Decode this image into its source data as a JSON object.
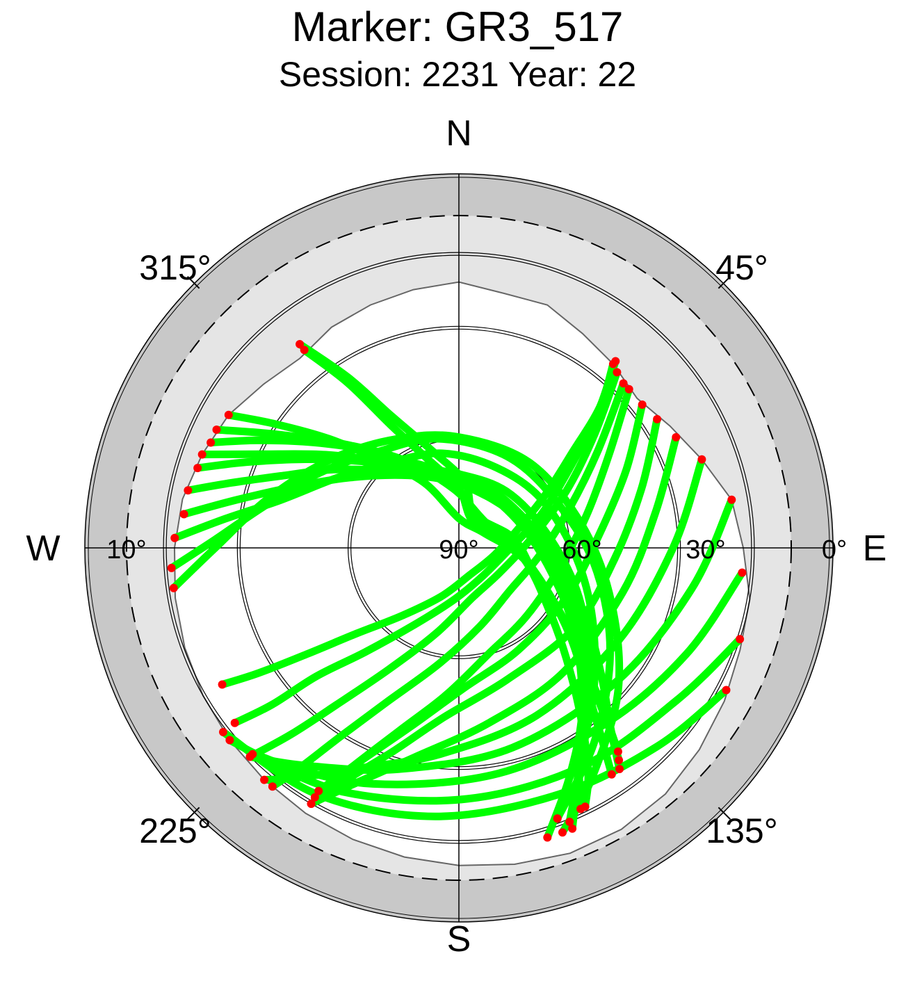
{
  "chart_data": {
    "type": "scatter",
    "projection": "polar-skyplot",
    "title": "Marker: GR3_517",
    "subtitle": "Session: 2231 Year: 22",
    "cardinal_labels": {
      "north": "N",
      "south": "S",
      "west": "W",
      "east": "E"
    },
    "azimuth_labels": [
      "315°",
      "45°",
      "225°",
      "135°"
    ],
    "elevation_labels": [
      "10°",
      "90°",
      "60°",
      "30°",
      "0°"
    ],
    "elevation_circles_deg": [
      0,
      10,
      30,
      60
    ],
    "colors": {
      "outer_band": "#c8c8c8",
      "visible_band": "#e5e5e5",
      "horizon_mask_fill": "#ffffff",
      "track": "#00ff00",
      "track_end": "#ff0000"
    },
    "horizon_mask_el_deg": [
      [
        0,
        18
      ],
      [
        10,
        20
      ],
      [
        20,
        20
      ],
      [
        30,
        23
      ],
      [
        40,
        25
      ],
      [
        50,
        27
      ],
      [
        60,
        24
      ],
      [
        70,
        20
      ],
      [
        80,
        15
      ],
      [
        90,
        13
      ],
      [
        100,
        10
      ],
      [
        110,
        9
      ],
      [
        120,
        7
      ],
      [
        130,
        5
      ],
      [
        140,
        3
      ],
      [
        150,
        2
      ],
      [
        160,
        2
      ],
      [
        170,
        3
      ],
      [
        180,
        4
      ],
      [
        190,
        5
      ],
      [
        200,
        6
      ],
      [
        210,
        7
      ],
      [
        220,
        8
      ],
      [
        230,
        9
      ],
      [
        240,
        10
      ],
      [
        250,
        11
      ],
      [
        260,
        12
      ],
      [
        270,
        13
      ],
      [
        280,
        14
      ],
      [
        290,
        16
      ],
      [
        300,
        18
      ],
      [
        310,
        21
      ],
      [
        320,
        23
      ],
      [
        330,
        21
      ],
      [
        340,
        20
      ],
      [
        350,
        19
      ],
      [
        360,
        18
      ]
    ],
    "series": [
      {
        "points": [
          [
            322,
            20
          ],
          [
            327,
            35
          ],
          [
            333,
            50
          ],
          [
            345,
            63
          ],
          [
            5,
            72
          ],
          [
            25,
            80
          ],
          [
            80,
            75
          ],
          [
            110,
            68
          ],
          [
            125,
            55
          ],
          [
            135,
            40
          ],
          [
            140,
            27
          ],
          [
            143,
            18
          ]
        ]
      },
      {
        "points": [
          [
            322,
            22
          ],
          [
            326,
            36
          ],
          [
            331,
            52
          ],
          [
            340,
            64
          ],
          [
            0,
            74
          ],
          [
            30,
            82
          ],
          [
            85,
            76
          ],
          [
            112,
            66
          ],
          [
            128,
            52
          ],
          [
            138,
            38
          ],
          [
            143,
            26
          ],
          [
            146,
            16
          ]
        ]
      },
      {
        "points": [
          [
            300,
            18
          ],
          [
            304,
            30
          ],
          [
            310,
            44
          ],
          [
            318,
            58
          ],
          [
            332,
            70
          ],
          [
            0,
            82
          ],
          [
            60,
            82
          ],
          [
            100,
            72
          ],
          [
            122,
            58
          ],
          [
            132,
            45
          ],
          [
            138,
            32
          ],
          [
            142,
            20
          ]
        ]
      },
      {
        "points": [
          [
            296,
            17
          ],
          [
            302,
            32
          ],
          [
            312,
            48
          ],
          [
            328,
            62
          ],
          [
            355,
            74
          ],
          [
            45,
            80
          ],
          [
            100,
            72
          ],
          [
            125,
            60
          ],
          [
            136,
            48
          ],
          [
            144,
            34
          ],
          [
            150,
            20
          ],
          [
            154,
            12
          ]
        ]
      },
      {
        "points": [
          [
            293,
            17
          ],
          [
            298,
            28
          ],
          [
            305,
            40
          ],
          [
            315,
            52
          ],
          [
            330,
            63
          ],
          [
            355,
            70
          ],
          [
            30,
            72
          ],
          [
            70,
            70
          ],
          [
            100,
            62
          ],
          [
            120,
            50
          ],
          [
            132,
            38
          ],
          [
            140,
            26
          ],
          [
            144,
            16
          ]
        ]
      },
      {
        "points": [
          [
            290,
            16
          ],
          [
            295,
            30
          ],
          [
            305,
            46
          ],
          [
            320,
            60
          ],
          [
            345,
            70
          ],
          [
            20,
            73
          ],
          [
            70,
            72
          ],
          [
            105,
            64
          ],
          [
            125,
            52
          ],
          [
            140,
            38
          ],
          [
            150,
            25
          ],
          [
            155,
            12
          ]
        ]
      },
      {
        "points": [
          [
            287,
            16
          ],
          [
            292,
            28
          ],
          [
            300,
            42
          ],
          [
            312,
            55
          ],
          [
            330,
            65
          ],
          [
            360,
            70
          ],
          [
            40,
            70
          ],
          [
            80,
            66
          ],
          [
            110,
            56
          ],
          [
            130,
            44
          ],
          [
            145,
            30
          ],
          [
            155,
            15
          ],
          [
            158,
            8
          ]
        ]
      },
      {
        "points": [
          [
            282,
            15
          ],
          [
            286,
            26
          ],
          [
            292,
            38
          ],
          [
            302,
            50
          ],
          [
            318,
            62
          ],
          [
            345,
            70
          ],
          [
            20,
            74
          ],
          [
            60,
            72
          ],
          [
            95,
            64
          ],
          [
            120,
            52
          ],
          [
            138,
            38
          ],
          [
            150,
            24
          ],
          [
            158,
            10
          ]
        ]
      },
      {
        "points": [
          [
            277,
            15
          ],
          [
            282,
            28
          ],
          [
            290,
            42
          ],
          [
            303,
            55
          ],
          [
            325,
            66
          ],
          [
            355,
            72
          ],
          [
            35,
            74
          ],
          [
            75,
            70
          ],
          [
            108,
            60
          ],
          [
            130,
            46
          ],
          [
            147,
            30
          ],
          [
            160,
            12
          ]
        ]
      },
      {
        "points": [
          [
            272,
            13
          ],
          [
            277,
            26
          ],
          [
            285,
            40
          ],
          [
            300,
            52
          ],
          [
            320,
            60
          ],
          [
            350,
            64
          ],
          [
            25,
            66
          ],
          [
            60,
            64
          ],
          [
            95,
            58
          ],
          [
            120,
            48
          ],
          [
            140,
            34
          ],
          [
            155,
            20
          ],
          [
            163,
            8
          ]
        ]
      },
      {
        "points": [
          [
            266,
            12
          ],
          [
            272,
            24
          ],
          [
            282,
            36
          ],
          [
            298,
            47
          ],
          [
            320,
            56
          ],
          [
            350,
            60
          ],
          [
            30,
            62
          ],
          [
            70,
            60
          ],
          [
            100,
            52
          ],
          [
            125,
            40
          ],
          [
            145,
            26
          ],
          [
            160,
            12
          ]
        ]
      },
      {
        "points": [
          [
            262,
            12
          ],
          [
            270,
            24
          ],
          [
            285,
            37
          ],
          [
            305,
            48
          ],
          [
            330,
            56
          ],
          [
            0,
            60
          ],
          [
            40,
            60
          ],
          [
            80,
            56
          ],
          [
            110,
            46
          ],
          [
            132,
            32
          ],
          [
            150,
            18
          ],
          [
            160,
            8
          ]
        ]
      },
      {
        "points": [
          [
            40,
            25
          ],
          [
            45,
            36
          ],
          [
            50,
            50
          ],
          [
            58,
            62
          ],
          [
            70,
            72
          ],
          [
            100,
            80
          ],
          [
            160,
            82
          ],
          [
            200,
            76
          ],
          [
            220,
            66
          ],
          [
            230,
            54
          ],
          [
            235,
            40
          ],
          [
            238,
            26
          ],
          [
            240,
            16
          ]
        ]
      },
      {
        "points": [
          [
            40,
            24
          ],
          [
            46,
            38
          ],
          [
            55,
            54
          ],
          [
            68,
            66
          ],
          [
            90,
            76
          ],
          [
            140,
            80
          ],
          [
            185,
            76
          ],
          [
            210,
            66
          ],
          [
            222,
            52
          ],
          [
            228,
            38
          ],
          [
            230,
            24
          ],
          [
            232,
            13
          ]
        ]
      },
      {
        "points": [
          [
            42,
            26
          ],
          [
            50,
            42
          ],
          [
            62,
            57
          ],
          [
            82,
            70
          ],
          [
            120,
            77
          ],
          [
            165,
            76
          ],
          [
            195,
            66
          ],
          [
            210,
            52
          ],
          [
            218,
            36
          ],
          [
            222,
            22
          ],
          [
            225,
            10
          ]
        ]
      },
      {
        "points": [
          [
            45,
            27
          ],
          [
            55,
            44
          ],
          [
            70,
            58
          ],
          [
            95,
            68
          ],
          [
            130,
            72
          ],
          [
            165,
            68
          ],
          [
            190,
            58
          ],
          [
            205,
            44
          ],
          [
            212,
            30
          ],
          [
            216,
            16
          ],
          [
            218,
            8
          ]
        ]
      },
      {
        "points": [
          [
            47,
            27
          ],
          [
            58,
            42
          ],
          [
            75,
            54
          ],
          [
            100,
            62
          ],
          [
            135,
            64
          ],
          [
            165,
            60
          ],
          [
            185,
            50
          ],
          [
            198,
            38
          ],
          [
            206,
            24
          ],
          [
            210,
            12
          ]
        ]
      },
      {
        "points": [
          [
            52,
            27
          ],
          [
            65,
            40
          ],
          [
            85,
            52
          ],
          [
            115,
            58
          ],
          [
            150,
            58
          ],
          [
            178,
            52
          ],
          [
            195,
            40
          ],
          [
            205,
            26
          ],
          [
            210,
            14
          ]
        ]
      },
      {
        "points": [
          [
            57,
            26
          ],
          [
            72,
            38
          ],
          [
            95,
            48
          ],
          [
            125,
            52
          ],
          [
            160,
            52
          ],
          [
            185,
            44
          ],
          [
            198,
            32
          ],
          [
            206,
            20
          ],
          [
            210,
            10
          ]
        ]
      },
      {
        "points": [
          [
            63,
            24
          ],
          [
            80,
            36
          ],
          [
            105,
            44
          ],
          [
            140,
            46
          ],
          [
            170,
            42
          ],
          [
            192,
            32
          ],
          [
            204,
            20
          ],
          [
            210,
            10
          ]
        ]
      },
      {
        "points": [
          [
            70,
            20
          ],
          [
            90,
            32
          ],
          [
            120,
            40
          ],
          [
            155,
            40
          ],
          [
            185,
            34
          ],
          [
            205,
            24
          ],
          [
            215,
            14
          ],
          [
            220,
            8
          ]
        ]
      },
      {
        "points": [
          [
            80,
            15
          ],
          [
            100,
            26
          ],
          [
            130,
            34
          ],
          [
            165,
            34
          ],
          [
            195,
            28
          ],
          [
            215,
            18
          ],
          [
            225,
            10
          ]
        ]
      },
      {
        "points": [
          [
            95,
            13
          ],
          [
            115,
            22
          ],
          [
            140,
            28
          ],
          [
            170,
            28
          ],
          [
            200,
            22
          ],
          [
            220,
            14
          ],
          [
            230,
            9
          ]
        ]
      },
      {
        "points": [
          [
            108,
            10
          ],
          [
            125,
            18
          ],
          [
            150,
            22
          ],
          [
            178,
            22
          ],
          [
            205,
            17
          ],
          [
            225,
            11
          ]
        ]
      },
      {
        "points": [
          [
            118,
            8
          ],
          [
            135,
            14
          ],
          [
            158,
            18
          ],
          [
            185,
            17
          ],
          [
            210,
            13
          ],
          [
            232,
            9
          ]
        ]
      }
    ]
  }
}
